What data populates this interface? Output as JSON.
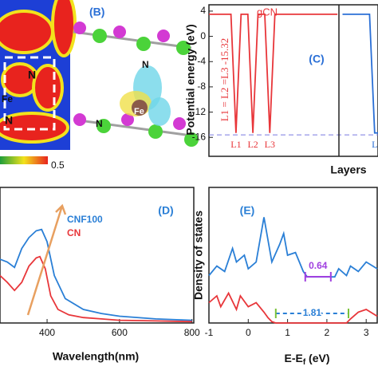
{
  "panel_a": {
    "labels": [
      "N",
      "Fe",
      "N"
    ],
    "colorbar_max": "0.5"
  },
  "panel_b": {
    "label": "(B)",
    "atoms": [
      "N",
      "Fe",
      "N"
    ]
  },
  "chart_data": [
    {
      "type": "line",
      "panel_label": "(C)",
      "ylabel": "Potential energy (eV)",
      "xlabel": "Layers",
      "annotations": [
        "gCN",
        "L1 = L2 =L3 -15.32"
      ],
      "layer_labels": [
        "L1",
        "L2",
        "L3",
        "L"
      ],
      "xlim": [
        0,
        10
      ],
      "ylim": [
        -19,
        5
      ],
      "yticks": [
        4,
        0,
        -4,
        -8,
        -12,
        -16
      ],
      "reference_line": -15.6,
      "series": [
        {
          "color": "#e8363a",
          "x": [
            0,
            1.3,
            1.6,
            1.9,
            2.3,
            2.6,
            2.9,
            3.3,
            3.6,
            3.9,
            7.6
          ],
          "values": [
            3.5,
            3.5,
            -15.3,
            3.5,
            3.5,
            -15.3,
            3.5,
            3.5,
            -15.3,
            3.5,
            3.5
          ]
        },
        {
          "color": "#2a6fd6",
          "x": [
            7.9,
            9.5,
            9.8,
            10
          ],
          "values": [
            3.5,
            3.5,
            -15.3,
            -15.3
          ]
        }
      ]
    },
    {
      "type": "line",
      "panel_label": "(D)",
      "xlabel": "Wavelength(nm)",
      "xlim": [
        270,
        805
      ],
      "ylim": [
        0,
        1
      ],
      "xticks": [
        400,
        600,
        800
      ],
      "series": [
        {
          "name": "CNF100",
          "color": "#2a7fd6",
          "x": [
            270,
            290,
            310,
            330,
            350,
            370,
            385,
            400,
            420,
            450,
            500,
            550,
            600,
            700,
            800
          ],
          "values": [
            0.47,
            0.45,
            0.41,
            0.55,
            0.63,
            0.68,
            0.69,
            0.6,
            0.35,
            0.18,
            0.1,
            0.07,
            0.05,
            0.03,
            0.02
          ]
        },
        {
          "name": "CN",
          "color": "#e8363a",
          "x": [
            270,
            290,
            310,
            330,
            350,
            370,
            380,
            395,
            410,
            430,
            460,
            500,
            550,
            600,
            700,
            800
          ],
          "values": [
            0.35,
            0.3,
            0.24,
            0.3,
            0.42,
            0.48,
            0.49,
            0.4,
            0.2,
            0.1,
            0.06,
            0.04,
            0.03,
            0.02,
            0.015,
            0.01
          ]
        }
      ]
    },
    {
      "type": "line",
      "panel_label": "(E)",
      "ylabel": "Density of states",
      "xlabel": "E-E",
      "xlabel_sub": "f",
      "xlabel_unit": " (eV)",
      "xlim": [
        -1,
        3.28
      ],
      "ylim": [
        0,
        1
      ],
      "xticks": [
        -1,
        0,
        1,
        2,
        3
      ],
      "gaps": [
        {
          "label": "0.64",
          "from": 1.45,
          "to": 2.1
        },
        {
          "label": "1.81",
          "from": 0.7,
          "to": 2.55
        }
      ],
      "series": [
        {
          "color": "#2a7fd6",
          "x": [
            -1,
            -0.8,
            -0.6,
            -0.4,
            -0.3,
            -0.1,
            0,
            0.2,
            0.4,
            0.6,
            0.8,
            0.9,
            1.0,
            1.2,
            1.4,
            1.5,
            1.6,
            2.2,
            2.3,
            2.5,
            2.6,
            2.8,
            3.0,
            3.28
          ],
          "values": [
            0.35,
            0.42,
            0.38,
            0.55,
            0.45,
            0.5,
            0.4,
            0.45,
            0.78,
            0.45,
            0.58,
            0.66,
            0.5,
            0.52,
            0.38,
            0.34,
            0.34,
            0.34,
            0.4,
            0.35,
            0.42,
            0.38,
            0.45,
            0.4
          ]
        },
        {
          "color": "#e8363a",
          "x": [
            -1,
            -0.8,
            -0.7,
            -0.5,
            -0.3,
            -0.2,
            0,
            0.2,
            0.4,
            0.5,
            0.6,
            0.7,
            2.5,
            2.6,
            2.8,
            3.0,
            3.28
          ],
          "values": [
            0.15,
            0.2,
            0.12,
            0.22,
            0.1,
            0.2,
            0.12,
            0.15,
            0.08,
            0.04,
            0.01,
            0,
            0,
            0.03,
            0.08,
            0.1,
            0.05
          ]
        }
      ]
    }
  ]
}
